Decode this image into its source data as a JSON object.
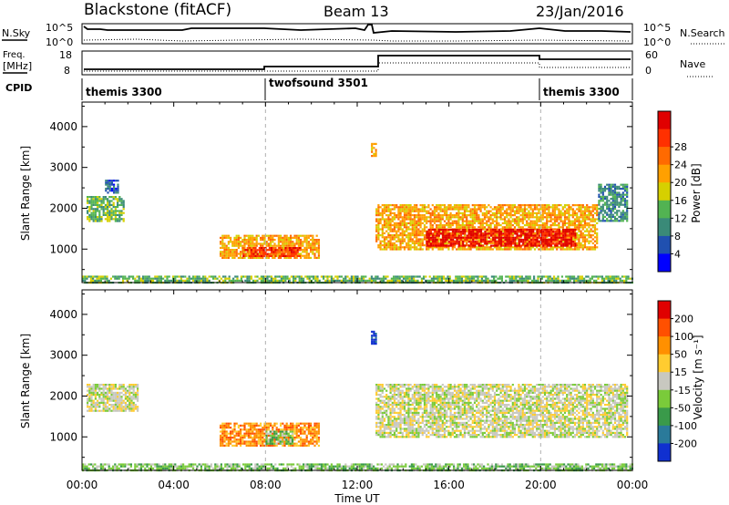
{
  "header": {
    "station": "Blackstone (fitACF)",
    "beam": "Beam 13",
    "date": "23/Jan/2016"
  },
  "top_panels": {
    "nsky_label": "N.Sky",
    "nsearch_label": "N.Search",
    "noise_ticks": [
      "10^5",
      "10^0"
    ],
    "freq_label": "Freq.",
    "freq_unit": "[MHz]",
    "freq_ticks": [
      "18",
      "8"
    ],
    "nave_label": "Nave",
    "nave_ticks": [
      "60",
      "0"
    ],
    "cpid_label": "CPID",
    "cpid_segments": [
      {
        "label": "themis 3300",
        "start_hour": 0
      },
      {
        "label": "twofsound 3501",
        "start_hour": 8
      },
      {
        "label": "themis 3300",
        "start_hour": 20
      }
    ]
  },
  "chart_data": [
    {
      "type": "heatmap",
      "title": "Power",
      "ylabel": "Slant Range [km]",
      "xlabel": "Time UT",
      "xlim": [
        0,
        24
      ],
      "ylim": [
        180,
        4600
      ],
      "x_ticks": [
        "00:00",
        "04:00",
        "08:00",
        "12:00",
        "16:00",
        "20:00",
        "00:00"
      ],
      "y_ticks": [
        "1000",
        "2000",
        "3000",
        "4000"
      ],
      "colorbar": {
        "label": "Power [dB]",
        "ticks": [
          "4",
          "8",
          "12",
          "16",
          "20",
          "24",
          "28"
        ],
        "colors": [
          "#0000ff",
          "#2050b0",
          "#3a8a78",
          "#52b352",
          "#d6d000",
          "#ffa000",
          "#ff6a00",
          "#ff3000",
          "#e00000"
        ]
      },
      "regions": [
        {
          "t0": 0.2,
          "t1": 1.8,
          "r0": 1700,
          "r1": 2300,
          "level": 3
        },
        {
          "t0": 1.0,
          "t1": 1.6,
          "r0": 2400,
          "r1": 2700,
          "level": 1
        },
        {
          "t0": 6.0,
          "t1": 10.3,
          "r0": 800,
          "r1": 1350,
          "level": 5
        },
        {
          "t0": 7.0,
          "t1": 9.5,
          "r0": 850,
          "r1": 1050,
          "level": 7
        },
        {
          "t0": 12.8,
          "t1": 22.5,
          "r0": 1000,
          "r1": 2100,
          "level": 5
        },
        {
          "t0": 15.0,
          "t1": 21.5,
          "r0": 1100,
          "r1": 1500,
          "level": 8
        },
        {
          "t0": 22.5,
          "t1": 23.8,
          "r0": 1700,
          "r1": 2600,
          "level": 2
        },
        {
          "t0": 12.6,
          "t1": 12.8,
          "r0": 3300,
          "r1": 3600,
          "level": 5
        },
        {
          "t0": 0,
          "t1": 24,
          "r0": 180,
          "r1": 350,
          "level": 3
        }
      ]
    },
    {
      "type": "heatmap",
      "title": "Velocity",
      "ylabel": "Slant Range [km]",
      "xlabel": "Time UT",
      "xlim": [
        0,
        24
      ],
      "ylim": [
        180,
        4600
      ],
      "x_ticks": [
        "00:00",
        "04:00",
        "08:00",
        "12:00",
        "16:00",
        "20:00",
        "00:00"
      ],
      "y_ticks": [
        "1000",
        "2000",
        "3000",
        "4000"
      ],
      "colorbar": {
        "label": "Velocity [m s⁻¹]",
        "ticks": [
          "200",
          "100",
          "50",
          "15",
          "-15",
          "-50",
          "-100",
          "-200"
        ],
        "colors": [
          "#1030d0",
          "#2a7a9a",
          "#3a9a4a",
          "#7acb3a",
          "#c8c8c0",
          "#ffcc30",
          "#ff9000",
          "#ff5000",
          "#e00000"
        ]
      },
      "regions": [
        {
          "t0": 0.2,
          "t1": 2.4,
          "r0": 1650,
          "r1": 2300,
          "level": 4
        },
        {
          "t0": 6.0,
          "t1": 10.3,
          "r0": 800,
          "r1": 1350,
          "level": 6
        },
        {
          "t0": 8.0,
          "t1": 9.2,
          "r0": 850,
          "r1": 1150,
          "level": 3
        },
        {
          "t0": 12.8,
          "t1": 23.8,
          "r0": 1000,
          "r1": 2300,
          "level": 4
        },
        {
          "t0": 12.6,
          "t1": 12.8,
          "r0": 3300,
          "r1": 3600,
          "level": 0
        },
        {
          "t0": 0,
          "t1": 24,
          "r0": 180,
          "r1": 350,
          "level": 3
        }
      ]
    }
  ]
}
